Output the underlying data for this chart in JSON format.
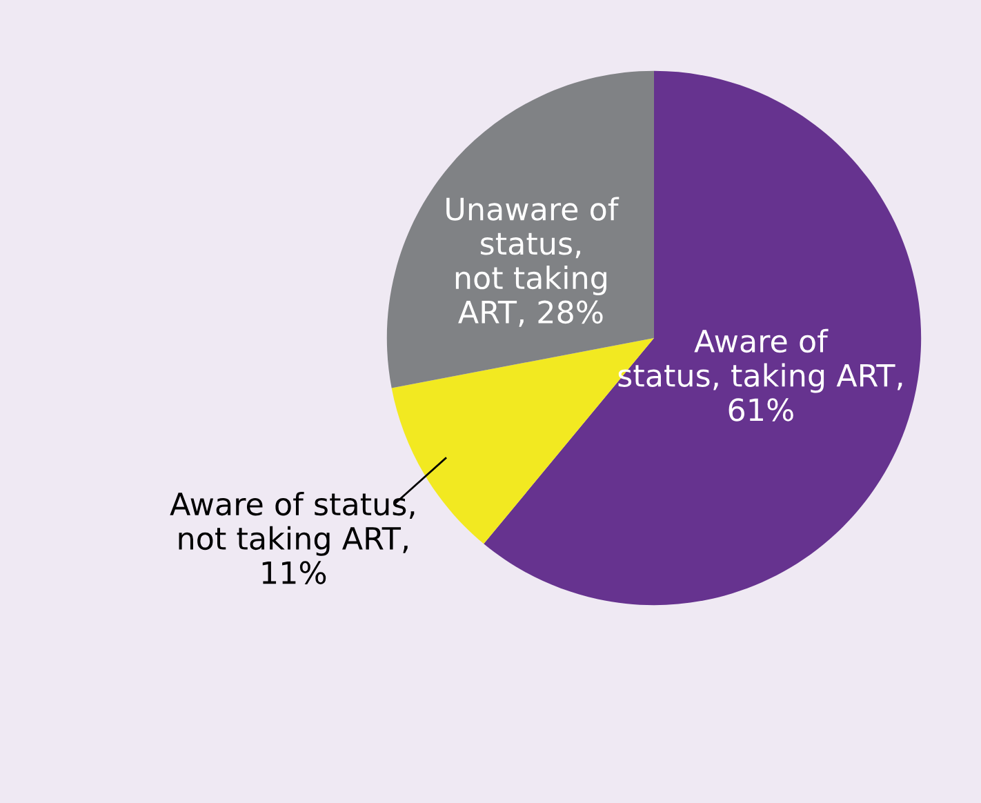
{
  "chart_data": {
    "type": "pie",
    "categories": [
      "Aware of\nstatus, taking ART,\n61%",
      "Aware of status,\nnot taking ART,\n11%",
      "Unaware of\nstatus,\nnot taking\nART, 28%"
    ],
    "values": [
      61,
      11,
      28
    ],
    "colors": [
      "#66338f",
      "#f2e921",
      "#808285"
    ]
  }
}
